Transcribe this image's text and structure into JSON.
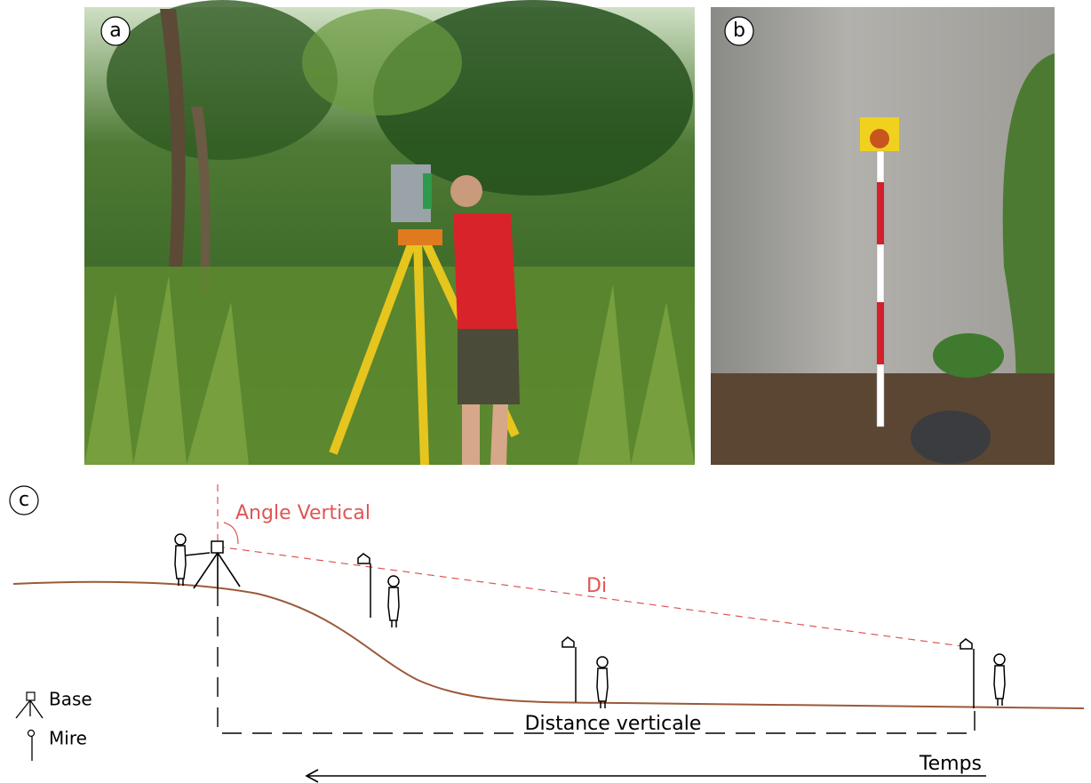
{
  "panels": [
    {
      "label": "a"
    },
    {
      "label": "b"
    },
    {
      "label": "c"
    }
  ],
  "diagram": {
    "angle_label": "Angle Vertical",
    "distance_label": "Di",
    "vertical_distance_label": "Distance verticale",
    "time_label": "Temps"
  },
  "legend": [
    {
      "label": "Base"
    },
    {
      "label": "Mire"
    }
  ]
}
